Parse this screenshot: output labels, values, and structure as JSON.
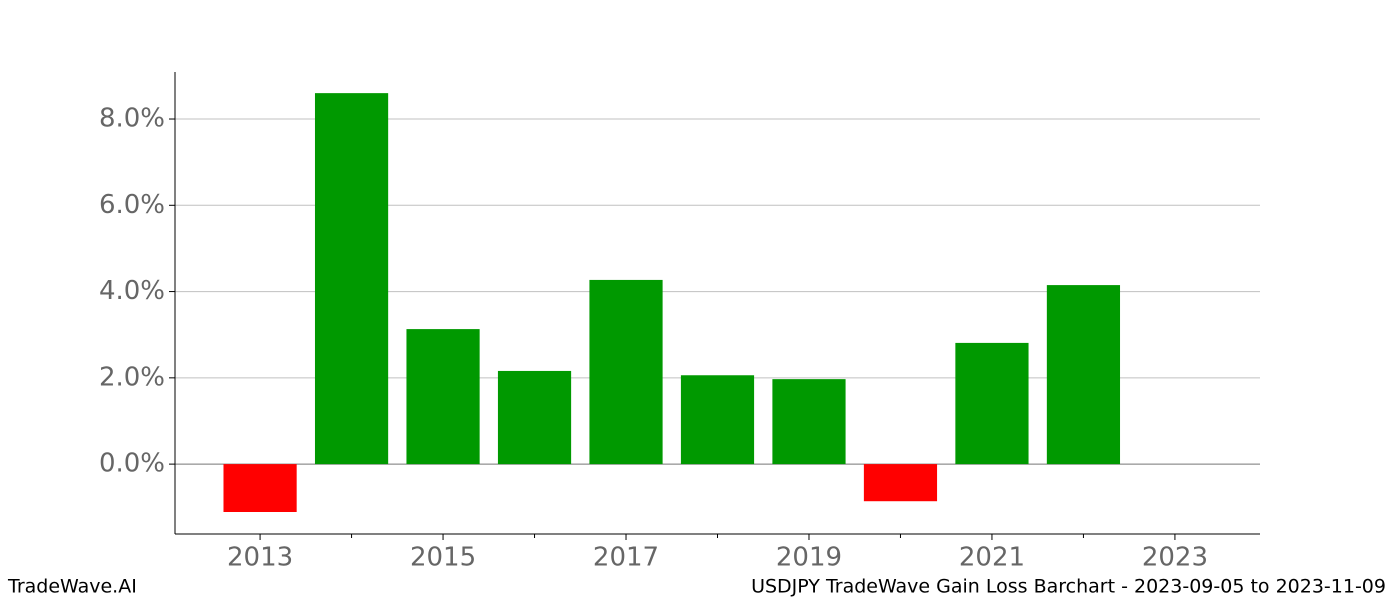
{
  "chart_data": {
    "type": "bar",
    "x": [
      2013,
      2014,
      2015,
      2016,
      2017,
      2018,
      2019,
      2020,
      2021,
      2022
    ],
    "values": [
      -1.11,
      8.6,
      3.13,
      2.16,
      4.27,
      2.06,
      1.97,
      -0.86,
      2.81,
      4.15
    ],
    "positive_color": "#009900",
    "negative_color": "#ff0000",
    "xlim": [
      2012.07,
      2023.93
    ],
    "xticks": [
      2013,
      2015,
      2017,
      2019,
      2021,
      2023
    ],
    "xminorticks": [
      2014,
      2016,
      2018,
      2020,
      2022
    ],
    "ylim": [
      -1.62,
      9.09
    ],
    "yticks": [
      {
        "value": 0,
        "label": "0.0%"
      },
      {
        "value": 2,
        "label": "2.0%"
      },
      {
        "value": 4,
        "label": "4.0%"
      },
      {
        "value": 6,
        "label": "6.0%"
      },
      {
        "value": 8,
        "label": "8.0%"
      }
    ],
    "grid": true,
    "watermark": "TradeWave.AI",
    "caption": "USDJPY TradeWave Gain Loss Barchart - 2023-09-05 to 2023-11-09"
  }
}
